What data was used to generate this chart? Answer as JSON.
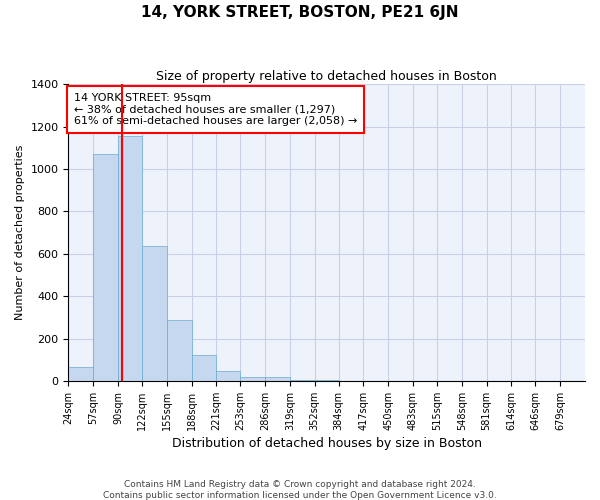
{
  "title": "14, YORK STREET, BOSTON, PE21 6JN",
  "subtitle": "Size of property relative to detached houses in Boston",
  "xlabel": "Distribution of detached houses by size in Boston",
  "ylabel": "Number of detached properties",
  "bin_labels": [
    "24sqm",
    "57sqm",
    "90sqm",
    "122sqm",
    "155sqm",
    "188sqm",
    "221sqm",
    "253sqm",
    "286sqm",
    "319sqm",
    "352sqm",
    "384sqm",
    "417sqm",
    "450sqm",
    "483sqm",
    "515sqm",
    "548sqm",
    "581sqm",
    "614sqm",
    "646sqm",
    "679sqm"
  ],
  "bin_edges": [
    24,
    57,
    90,
    122,
    155,
    188,
    221,
    253,
    286,
    319,
    352,
    384,
    417,
    450,
    483,
    515,
    548,
    581,
    614,
    646,
    679,
    712
  ],
  "bar_heights": [
    65,
    1070,
    1155,
    638,
    288,
    122,
    48,
    20,
    20,
    5,
    3,
    2,
    0,
    0,
    0,
    0,
    0,
    0,
    0,
    0,
    0
  ],
  "bar_color": "#c5d8f0",
  "bar_edge_color": "#6aabd2",
  "vline_x": 95,
  "vline_color": "red",
  "annotation_text": "14 YORK STREET: 95sqm\n← 38% of detached houses are smaller (1,297)\n61% of semi-detached houses are larger (2,058) →",
  "annotation_box_color": "white",
  "annotation_box_edge": "red",
  "ylim": [
    0,
    1400
  ],
  "yticks": [
    0,
    200,
    400,
    600,
    800,
    1000,
    1200,
    1400
  ],
  "footer_line1": "Contains HM Land Registry data © Crown copyright and database right 2024.",
  "footer_line2": "Contains public sector information licensed under the Open Government Licence v3.0.",
  "bg_color": "#eef2fb",
  "grid_color": "#c8d0e8",
  "title_fontsize": 11,
  "subtitle_fontsize": 9,
  "ylabel_fontsize": 8,
  "xlabel_fontsize": 9,
  "tick_fontsize": 7,
  "footer_fontsize": 6.5,
  "annot_fontsize": 8
}
